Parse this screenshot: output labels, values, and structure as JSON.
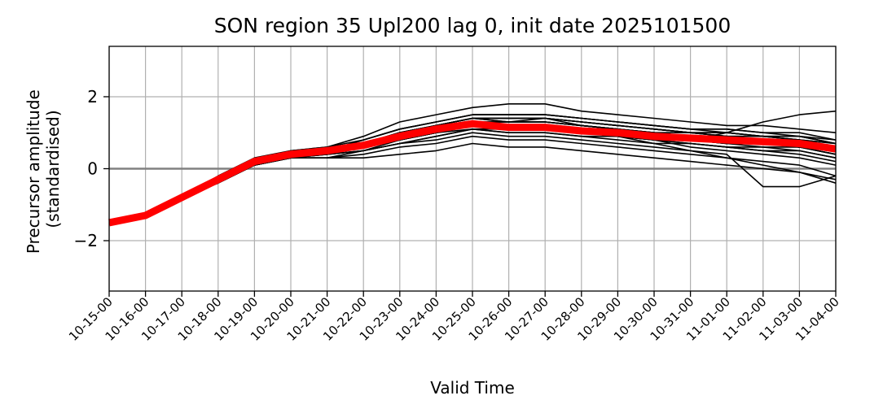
{
  "chart_data": {
    "type": "line",
    "title": "SON region 35 Upl200 lag 0, init date 2025101500",
    "xlabel": "Valid Time",
    "ylabel_lines": [
      "Precursor amplitude",
      "(standardised)"
    ],
    "categories": [
      "10-15-00",
      "10-16-00",
      "10-17-00",
      "10-18-00",
      "10-19-00",
      "10-20-00",
      "10-21-00",
      "10-22-00",
      "10-23-00",
      "10-24-00",
      "10-25-00",
      "10-26-00",
      "10-27-00",
      "10-28-00",
      "10-29-00",
      "10-30-00",
      "10-31-00",
      "11-01-00",
      "11-02-00",
      "11-03-00",
      "11-04-00"
    ],
    "yticks": [
      2,
      0,
      -2
    ],
    "ytick_labels": [
      "2",
      "0",
      "−2"
    ],
    "ylim": [
      -3.4,
      3.4
    ],
    "grid": true,
    "zero_line_color": "#808080",
    "grid_color": "#b0b0b0",
    "member_color": "#000000",
    "mean_color": "#ff0000",
    "members": [
      [
        null,
        null,
        -0.8,
        -0.3,
        0.2,
        0.4,
        0.5,
        0.7,
        1.0,
        1.2,
        1.4,
        1.3,
        1.4,
        1.3,
        1.2,
        1.1,
        1.0,
        0.9,
        0.9,
        0.8,
        0.6
      ],
      [
        null,
        null,
        -0.8,
        -0.3,
        0.2,
        0.4,
        0.5,
        0.6,
        0.8,
        1.0,
        1.2,
        1.1,
        1.1,
        1.0,
        1.0,
        0.9,
        0.8,
        0.8,
        0.7,
        0.7,
        0.5
      ],
      [
        null,
        null,
        -0.8,
        -0.3,
        0.1,
        0.3,
        0.4,
        0.5,
        0.7,
        0.9,
        1.1,
        1.0,
        1.0,
        0.9,
        0.9,
        0.8,
        0.7,
        0.6,
        0.6,
        0.5,
        0.3
      ],
      [
        null,
        null,
        -0.8,
        -0.2,
        0.3,
        0.5,
        0.6,
        0.8,
        1.1,
        1.3,
        1.5,
        1.5,
        1.5,
        1.4,
        1.3,
        1.2,
        1.1,
        1.1,
        1.0,
        1.0,
        0.8
      ],
      [
        null,
        null,
        -0.8,
        -0.3,
        0.2,
        0.5,
        0.6,
        0.9,
        1.3,
        1.5,
        1.7,
        1.8,
        1.8,
        1.6,
        1.5,
        1.4,
        1.3,
        1.2,
        1.2,
        1.1,
        1.0
      ],
      [
        null,
        null,
        -0.8,
        -0.4,
        0.1,
        0.3,
        0.3,
        0.4,
        0.6,
        0.7,
        0.9,
        0.8,
        0.8,
        0.7,
        0.6,
        0.5,
        0.4,
        0.3,
        0.2,
        0.1,
        -0.2
      ],
      [
        null,
        null,
        -0.8,
        -0.3,
        0.2,
        0.4,
        0.5,
        0.7,
        0.9,
        1.1,
        1.3,
        1.2,
        1.2,
        1.1,
        1.0,
        0.9,
        0.9,
        0.8,
        0.8,
        0.7,
        0.5
      ],
      [
        null,
        null,
        -0.8,
        -0.3,
        0.2,
        0.4,
        0.4,
        0.6,
        0.8,
        1.0,
        1.2,
        1.1,
        1.1,
        1.0,
        0.9,
        0.7,
        0.5,
        0.3,
        0.1,
        -0.1,
        -0.3
      ],
      [
        null,
        null,
        -0.8,
        -0.3,
        0.2,
        0.4,
        0.5,
        0.6,
        0.9,
        1.1,
        1.3,
        1.3,
        1.3,
        1.2,
        1.1,
        1.0,
        0.9,
        0.9,
        0.8,
        0.8,
        0.7
      ],
      [
        null,
        null,
        -0.8,
        -0.3,
        0.1,
        0.3,
        0.3,
        0.5,
        0.7,
        0.8,
        1.0,
        0.9,
        0.9,
        0.8,
        0.7,
        0.6,
        0.5,
        0.4,
        -0.5,
        -0.5,
        -0.2
      ],
      [
        null,
        null,
        -0.8,
        -0.3,
        0.2,
        0.4,
        0.5,
        0.8,
        1.1,
        1.3,
        1.5,
        1.5,
        1.5,
        1.4,
        1.3,
        1.2,
        1.1,
        1.0,
        0.9,
        0.8,
        0.6
      ],
      [
        null,
        null,
        -0.8,
        -0.3,
        0.2,
        0.4,
        0.4,
        0.6,
        0.8,
        1.0,
        1.2,
        1.1,
        1.1,
        1.0,
        0.9,
        0.8,
        0.6,
        0.5,
        0.4,
        0.3,
        0.1
      ],
      [
        null,
        null,
        -0.8,
        -0.3,
        0.2,
        0.4,
        0.5,
        0.7,
        1.0,
        1.2,
        1.4,
        1.4,
        1.4,
        1.3,
        1.2,
        1.1,
        1.0,
        1.0,
        0.9,
        0.9,
        0.8
      ],
      [
        null,
        null,
        -0.8,
        -0.3,
        0.2,
        0.4,
        0.5,
        0.6,
        0.9,
        1.1,
        1.3,
        1.2,
        1.2,
        1.1,
        1.0,
        0.9,
        0.8,
        0.7,
        0.7,
        0.6,
        0.4
      ],
      [
        null,
        null,
        -0.8,
        -0.3,
        0.2,
        0.4,
        0.5,
        0.7,
        1.0,
        1.1,
        1.3,
        1.3,
        1.3,
        1.2,
        1.1,
        1.0,
        1.0,
        0.9,
        0.9,
        0.8,
        0.6
      ],
      [
        null,
        null,
        -0.8,
        -0.3,
        0.2,
        0.4,
        0.5,
        0.7,
        1.0,
        1.2,
        1.4,
        1.4,
        1.4,
        1.2,
        1.1,
        0.9,
        0.8,
        1.0,
        1.3,
        1.5,
        1.6
      ],
      [
        null,
        null,
        -0.8,
        -0.3,
        0.1,
        0.3,
        0.4,
        0.5,
        0.7,
        0.9,
        1.1,
        1.0,
        1.0,
        0.9,
        0.8,
        0.7,
        0.7,
        0.6,
        0.5,
        0.4,
        0.2
      ],
      [
        null,
        null,
        -0.8,
        -0.3,
        0.2,
        0.4,
        0.4,
        0.6,
        0.8,
        1.0,
        1.2,
        1.2,
        1.2,
        1.1,
        1.0,
        0.9,
        0.8,
        0.8,
        0.7,
        0.7,
        0.5
      ],
      [
        null,
        null,
        -0.8,
        -0.3,
        0.2,
        0.4,
        0.5,
        0.7,
        1.0,
        1.2,
        1.4,
        1.4,
        1.4,
        1.3,
        1.2,
        1.1,
        1.0,
        0.9,
        0.8,
        0.8,
        0.6
      ],
      [
        null,
        null,
        -0.8,
        -0.3,
        0.2,
        0.4,
        0.5,
        0.6,
        0.9,
        1.0,
        1.2,
        1.2,
        1.2,
        1.1,
        1.0,
        0.9,
        0.8,
        0.7,
        0.7,
        0.6,
        0.5
      ],
      [
        null,
        null,
        -0.8,
        -0.3,
        0.1,
        0.3,
        0.4,
        0.5,
        0.8,
        1.0,
        1.2,
        1.1,
        1.1,
        1.0,
        0.9,
        0.8,
        0.7,
        0.6,
        0.5,
        0.5,
        0.3
      ],
      [
        null,
        null,
        -0.8,
        -0.3,
        0.2,
        0.4,
        0.5,
        0.8,
        1.1,
        1.3,
        1.5,
        1.5,
        1.5,
        1.4,
        1.3,
        1.2,
        1.1,
        1.1,
        1.0,
        0.9,
        0.7
      ],
      [
        null,
        null,
        -0.8,
        -0.3,
        0.2,
        0.4,
        0.5,
        0.7,
        0.9,
        1.1,
        1.3,
        1.3,
        1.3,
        1.2,
        1.1,
        1.0,
        0.9,
        0.8,
        0.8,
        0.7,
        0.5
      ],
      [
        null,
        null,
        -0.8,
        -0.3,
        0.2,
        0.4,
        0.5,
        0.6,
        0.8,
        1.0,
        1.2,
        1.1,
        1.1,
        1.0,
        1.0,
        0.9,
        0.9,
        0.8,
        0.8,
        0.7,
        0.6
      ],
      [
        null,
        null,
        -0.8,
        -0.3,
        0.2,
        0.4,
        0.5,
        0.7,
        1.0,
        1.2,
        1.4,
        1.3,
        1.3,
        1.2,
        1.1,
        1.0,
        0.9,
        0.9,
        0.8,
        0.8,
        0.7
      ],
      [
        null,
        null,
        -0.8,
        -0.4,
        0.1,
        0.3,
        0.3,
        0.3,
        0.4,
        0.5,
        0.7,
        0.6,
        0.6,
        0.5,
        0.4,
        0.3,
        0.2,
        0.1,
        0.0,
        -0.1,
        -0.4
      ],
      [
        null,
        null,
        -0.8,
        -0.3,
        0.2,
        0.4,
        0.5,
        0.6,
        0.9,
        1.1,
        1.3,
        1.2,
        1.2,
        1.1,
        1.0,
        0.9,
        0.8,
        0.7,
        0.6,
        0.6,
        0.4
      ],
      [
        null,
        null,
        -0.8,
        -0.3,
        0.2,
        0.4,
        0.5,
        0.7,
        1.0,
        1.2,
        1.4,
        1.4,
        1.4,
        1.3,
        1.2,
        1.1,
        1.0,
        1.0,
        0.9,
        0.9,
        0.7
      ],
      [
        null,
        null,
        -0.8,
        -0.3,
        0.2,
        0.4,
        0.5,
        0.7,
        0.9,
        1.1,
        1.3,
        1.2,
        1.2,
        1.1,
        1.0,
        0.9,
        0.8,
        0.8,
        0.7,
        0.6,
        0.4
      ],
      [
        null,
        null,
        -0.8,
        -0.3,
        0.2,
        0.4,
        0.5,
        0.6,
        0.8,
        1.0,
        1.1,
        1.1,
        1.1,
        1.0,
        0.9,
        0.8,
        0.8,
        0.7,
        0.7,
        0.6,
        0.5
      ]
    ],
    "mean": {
      "name": "",
      "values": [
        -1.5,
        -1.3,
        -0.8,
        -0.3,
        0.2,
        0.4,
        0.5,
        0.65,
        0.9,
        1.1,
        1.25,
        1.15,
        1.15,
        1.05,
        1.0,
        0.9,
        0.85,
        0.8,
        0.75,
        0.7,
        0.55
      ]
    }
  }
}
